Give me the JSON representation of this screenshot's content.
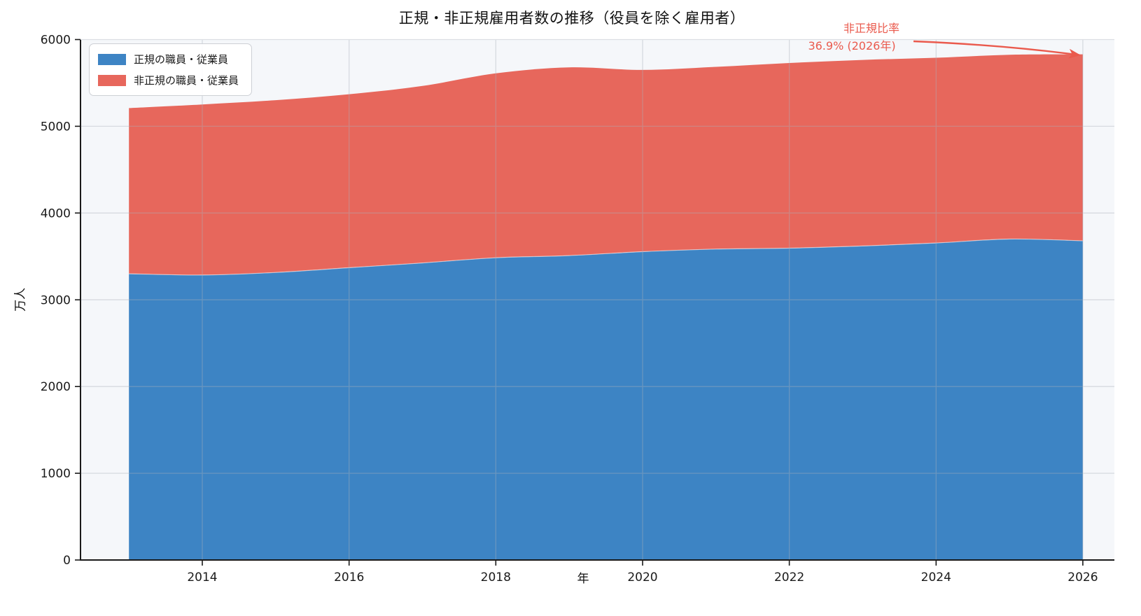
{
  "chart_data": {
    "type": "area",
    "stacked": true,
    "title": "正規・非正規雇用者数の推移（役員を除く雇用者）",
    "xlabel": "年",
    "ylabel": "万人",
    "unit": "万人",
    "x": [
      2013,
      2014,
      2015,
      2016,
      2017,
      2018,
      2019,
      2020,
      2021,
      2022,
      2023,
      2024,
      2025,
      2026
    ],
    "series": [
      {
        "name": "正規の職員・従業員",
        "color": "#3d84c4",
        "values": [
          3300,
          3285,
          3315,
          3370,
          3425,
          3485,
          3510,
          3555,
          3585,
          3595,
          3620,
          3655,
          3700,
          3680
        ]
      },
      {
        "name": "非正規の職員・従業員",
        "color": "#e7675c",
        "values": [
          1910,
          1967,
          1986,
          2000,
          2040,
          2125,
          2170,
          2095,
          2100,
          2135,
          2145,
          2135,
          2125,
          2150
        ]
      }
    ],
    "stacked_totals": [
      5210,
      5252,
      5301,
      5370,
      5465,
      5610,
      5680,
      5650,
      5685,
      5730,
      5765,
      5790,
      5825,
      5830
    ],
    "xticks": [
      2014,
      2016,
      2018,
      2020,
      2022,
      2024,
      2026
    ],
    "yticks": [
      0,
      1000,
      2000,
      3000,
      4000,
      5000,
      6000
    ],
    "xlim": [
      2012.34,
      2026.43
    ],
    "ylim": [
      0,
      6000
    ],
    "grid": true,
    "legend_position": "upper-left",
    "annotation": {
      "line1": "非正規比率",
      "line2": "36.9% (2026年)",
      "ratio_pct": 36.9,
      "target_year": 2026,
      "color": "#ea5a4d"
    },
    "colors": {
      "plot_background": "#f5f7fa",
      "figure_background": "#ffffff",
      "gridline": "#aab0ba",
      "spine": "#1a1a1a",
      "tick_label": "#1a1a1a"
    }
  }
}
